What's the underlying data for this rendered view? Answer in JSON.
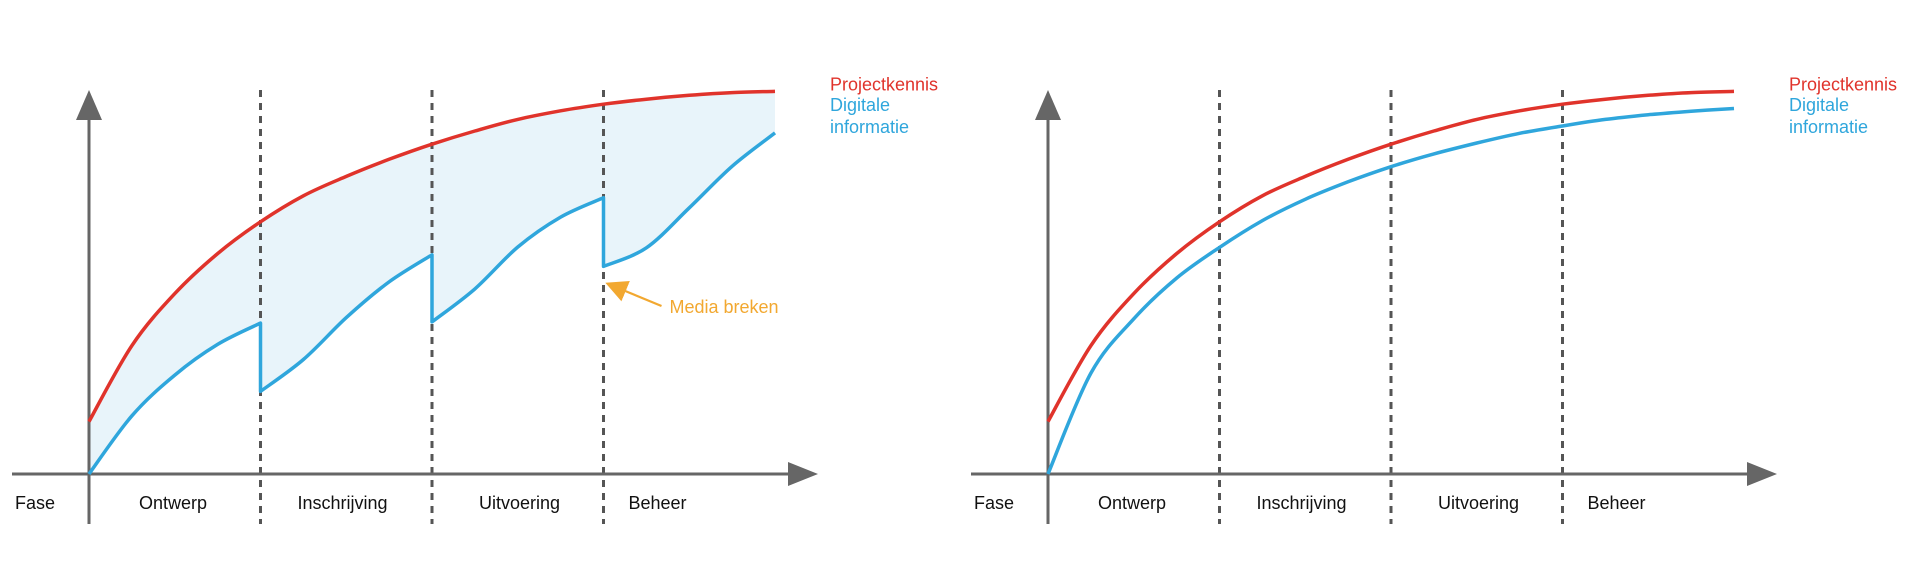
{
  "colors": {
    "axis": "#666666",
    "phase_divider": "#555555",
    "projectkennis": "#e0332b",
    "digitale_informatie": "#2fa6dc",
    "gap_fill": "#e8f4fa",
    "annotation": "#f2a830",
    "text": "#111111"
  },
  "axis_label": "Fase",
  "phases": [
    "Ontwerp",
    "Inschrijving",
    "Uitvoering",
    "Beheer"
  ],
  "series_labels": {
    "projectkennis": "Projectkennis",
    "digitale_informatie_line1": "Digitale",
    "digitale_informatie_line2": "informatie"
  },
  "annotation": {
    "label": "Media breken",
    "arrow_icon": "arrow-pointer-icon"
  },
  "chart_data": [
    {
      "type": "line",
      "panel": "left",
      "xlabel": "Fase",
      "ylabel": "",
      "categories": [
        "Ontwerp",
        "Inschrijving",
        "Uitvoering",
        "Beheer"
      ],
      "x_range": [
        0,
        4
      ],
      "y_range": [
        0,
        100
      ],
      "gap_shaded": true,
      "series": [
        {
          "name": "Projectkennis",
          "color": "#e0332b",
          "points": [
            [
              0,
              13.5
            ],
            [
              0.25,
              33.1
            ],
            [
              0.5,
              46.5
            ],
            [
              0.75,
              56.8
            ],
            [
              1,
              65.0
            ],
            [
              1.25,
              71.7
            ],
            [
              1.5,
              76.7
            ],
            [
              1.75,
              81.1
            ],
            [
              2,
              85.0
            ],
            [
              2.25,
              88.4
            ],
            [
              2.5,
              91.4
            ],
            [
              2.75,
              93.6
            ],
            [
              3,
              95.3
            ],
            [
              3.25,
              96.6
            ],
            [
              3.5,
              97.6
            ],
            [
              3.75,
              98.3
            ],
            [
              4,
              98.6
            ]
          ]
        },
        {
          "name": "Digitale informatie",
          "color": "#2fa6dc",
          "points": [
            [
              0,
              0
            ],
            [
              0.25,
              15
            ],
            [
              0.5,
              25.5
            ],
            [
              0.75,
              33.4
            ],
            [
              1,
              38.9
            ],
            [
              1,
              21.3
            ],
            [
              1.25,
              29.5
            ],
            [
              1.5,
              40.3
            ],
            [
              1.75,
              49.5
            ],
            [
              2,
              56.5
            ],
            [
              2,
              39.2
            ],
            [
              2.25,
              47.7
            ],
            [
              2.5,
              58.5
            ],
            [
              2.75,
              66.2
            ],
            [
              3,
              71.2
            ],
            [
              3,
              53.5
            ],
            [
              3.25,
              58.3
            ],
            [
              3.5,
              68.6
            ],
            [
              3.75,
              79.3
            ],
            [
              4,
              87.9
            ]
          ]
        }
      ],
      "annotations": [
        {
          "text": "Media breken",
          "x": 3,
          "y": 50
        }
      ]
    },
    {
      "type": "line",
      "panel": "right",
      "xlabel": "Fase",
      "ylabel": "",
      "categories": [
        "Ontwerp",
        "Inschrijving",
        "Uitvoering",
        "Beheer"
      ],
      "x_range": [
        0,
        4
      ],
      "y_range": [
        0,
        100
      ],
      "gap_shaded": false,
      "series": [
        {
          "name": "Projectkennis",
          "color": "#e0332b",
          "points": [
            [
              0,
              13.5
            ],
            [
              0.25,
              33.1
            ],
            [
              0.5,
              46.5
            ],
            [
              0.75,
              56.8
            ],
            [
              1,
              65.0
            ],
            [
              1.25,
              71.7
            ],
            [
              1.5,
              76.7
            ],
            [
              1.75,
              81.1
            ],
            [
              2,
              85.0
            ],
            [
              2.25,
              88.4
            ],
            [
              2.5,
              91.4
            ],
            [
              2.75,
              93.6
            ],
            [
              3,
              95.3
            ],
            [
              3.25,
              96.6
            ],
            [
              3.5,
              97.6
            ],
            [
              3.75,
              98.3
            ],
            [
              4,
              98.6
            ]
          ]
        },
        {
          "name": "Digitale informatie",
          "color": "#2fa6dc",
          "points": [
            [
              0,
              0
            ],
            [
              0.25,
              26
            ],
            [
              0.5,
              40
            ],
            [
              0.75,
              50.5
            ],
            [
              1,
              58.4
            ],
            [
              1.25,
              65.3
            ],
            [
              1.5,
              70.8
            ],
            [
              1.75,
              75.3
            ],
            [
              2,
              79.2
            ],
            [
              2.25,
              82.5
            ],
            [
              2.5,
              85.3
            ],
            [
              2.75,
              87.8
            ],
            [
              3,
              89.7
            ],
            [
              3.25,
              91.4
            ],
            [
              3.5,
              92.6
            ],
            [
              3.75,
              93.5
            ],
            [
              4,
              94.2
            ]
          ]
        }
      ],
      "annotations": []
    }
  ]
}
